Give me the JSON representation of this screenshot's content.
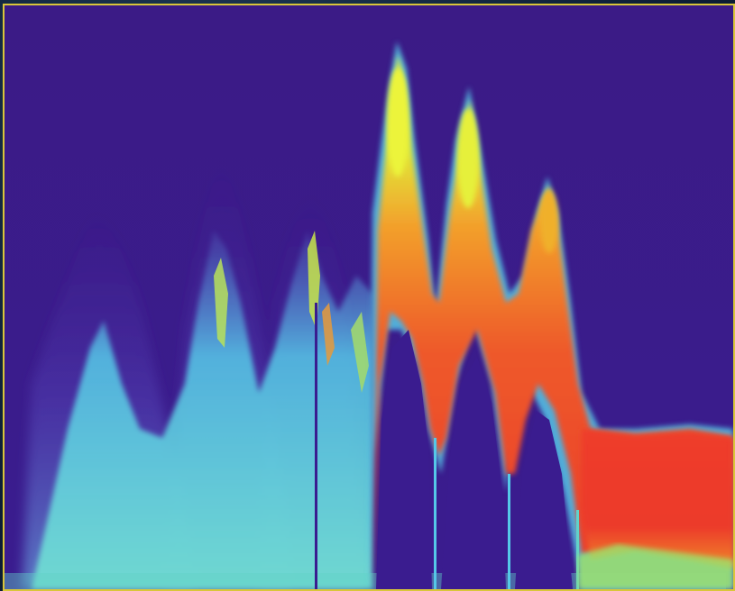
{
  "colors": {
    "background": "#3c1d8c",
    "border": "#d9c63a",
    "deep": "#4a2aa0",
    "cyan": "#55c8e8",
    "teal": "#62d2c8",
    "green": "#9ee06a",
    "yellow": "#e6f03a",
    "orange": "#f08a2a",
    "red": "#ec3a2a"
  }
}
